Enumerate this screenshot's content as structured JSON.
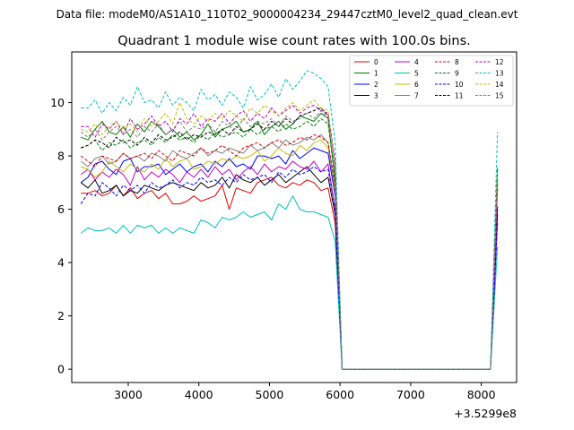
{
  "suptitle": "Data file: modeM0/AS1A10_110T02_9000004234_29447cztM0_level2_quad_clean.evt",
  "chart_data": {
    "type": "line",
    "title": "Quadrant 1 module wise count rates with 100.0s bins.",
    "xlabel": "",
    "ylabel": "",
    "x_offset_label": "+3.5299e8",
    "xlim": [
      2200,
      8500
    ],
    "ylim": [
      -0.5,
      11.9
    ],
    "xticks": [
      3000,
      4000,
      5000,
      6000,
      7000,
      8000
    ],
    "yticks": [
      0,
      2,
      4,
      6,
      8,
      10
    ],
    "grid": false,
    "legend_position": "top-right",
    "x": [
      2330,
      2430,
      2530,
      2630,
      2730,
      2830,
      2930,
      3030,
      3130,
      3230,
      3330,
      3430,
      3530,
      3630,
      3730,
      3830,
      3930,
      4030,
      4130,
      4230,
      4330,
      4430,
      4530,
      4630,
      4730,
      4830,
      4930,
      5030,
      5130,
      5230,
      5330,
      5430,
      5530,
      5630,
      5730,
      5830,
      5930,
      6030,
      8030,
      8130,
      8230
    ],
    "series": [
      {
        "name": "0",
        "color": "#e00000",
        "dash": "solid",
        "values": [
          6.6,
          6.6,
          6.7,
          6.5,
          6.6,
          6.9,
          6.5,
          6.8,
          6.4,
          6.6,
          6.7,
          6.4,
          6.6,
          6.2,
          6.2,
          6.3,
          6.5,
          6.3,
          6.4,
          6.5,
          6.9,
          6.0,
          6.8,
          6.7,
          6.6,
          7.0,
          7.1,
          7.2,
          6.9,
          6.8,
          7.0,
          6.9,
          7.1,
          7.0,
          6.7,
          6.8,
          5.5,
          0,
          0,
          0,
          6.8
        ]
      },
      {
        "name": "1",
        "color": "#008000",
        "dash": "solid",
        "values": [
          8.7,
          8.6,
          9.0,
          9.3,
          8.9,
          8.8,
          9.1,
          8.7,
          9.2,
          8.9,
          9.3,
          9.1,
          8.8,
          9.0,
          8.7,
          8.9,
          8.6,
          8.8,
          9.2,
          8.7,
          9.0,
          9.1,
          9.3,
          8.9,
          9.0,
          9.3,
          8.8,
          9.1,
          9.3,
          9.0,
          9.2,
          9.5,
          9.4,
          9.3,
          9.6,
          9.4,
          7.0,
          0,
          0,
          0,
          7.5
        ]
      },
      {
        "name": "2",
        "color": "#0000ff",
        "dash": "solid",
        "values": [
          7.0,
          7.2,
          7.7,
          7.8,
          7.5,
          7.3,
          7.8,
          7.9,
          7.4,
          7.6,
          7.6,
          7.7,
          7.3,
          7.5,
          7.7,
          7.4,
          7.6,
          7.7,
          7.4,
          7.8,
          7.6,
          7.9,
          7.6,
          7.7,
          7.5,
          8.0,
          8.0,
          7.9,
          8.0,
          7.7,
          8.2,
          7.9,
          8.1,
          8.3,
          8.2,
          8.1,
          6.5,
          0,
          0,
          0,
          5.8
        ]
      },
      {
        "name": "3",
        "color": "#000000",
        "dash": "solid",
        "values": [
          7.0,
          6.8,
          7.1,
          6.6,
          6.7,
          6.9,
          6.5,
          6.7,
          6.6,
          6.9,
          6.8,
          6.7,
          6.9,
          7.0,
          6.9,
          6.8,
          6.7,
          7.0,
          6.8,
          6.9,
          7.2,
          6.8,
          7.3,
          7.1,
          7.0,
          7.2,
          6.9,
          7.1,
          7.3,
          7.0,
          7.2,
          7.4,
          7.6,
          7.3,
          7.0,
          7.2,
          5.8,
          0,
          0,
          0,
          6.1
        ]
      },
      {
        "name": "4",
        "color": "#c000c0",
        "dash": "solid",
        "values": [
          7.3,
          7.5,
          7.1,
          7.4,
          7.2,
          7.5,
          7.3,
          6.9,
          7.6,
          7.1,
          7.4,
          7.2,
          7.5,
          7.3,
          7.0,
          7.4,
          7.2,
          7.5,
          7.2,
          7.6,
          7.3,
          7.5,
          7.1,
          7.4,
          7.6,
          7.3,
          7.7,
          7.4,
          7.6,
          7.5,
          7.8,
          7.6,
          7.5,
          7.8,
          7.4,
          7.7,
          6.0,
          0,
          0,
          0,
          5.6
        ]
      },
      {
        "name": "5",
        "color": "#00bfbf",
        "dash": "solid",
        "values": [
          5.1,
          5.3,
          5.2,
          5.2,
          5.3,
          5.1,
          5.4,
          5.1,
          5.4,
          5.3,
          5.4,
          5.1,
          5.3,
          5.1,
          5.3,
          5.2,
          5.1,
          5.6,
          5.5,
          5.3,
          5.7,
          5.6,
          5.7,
          5.9,
          5.7,
          5.8,
          5.9,
          5.6,
          6.2,
          6.0,
          6.5,
          6.0,
          5.9,
          5.9,
          5.8,
          5.7,
          4.8,
          0,
          0,
          0,
          4.6
        ]
      },
      {
        "name": "6",
        "color": "#bfbf00",
        "dash": "solid",
        "values": [
          7.6,
          7.5,
          7.2,
          7.4,
          7.8,
          7.6,
          7.4,
          7.7,
          7.5,
          7.4,
          7.7,
          7.5,
          7.9,
          7.6,
          7.8,
          7.9,
          7.5,
          7.6,
          7.8,
          7.7,
          7.9,
          7.8,
          8.0,
          7.9,
          8.0,
          8.2,
          7.8,
          8.0,
          8.3,
          8.1,
          8.0,
          8.4,
          8.2,
          8.5,
          8.6,
          8.3,
          6.8,
          0,
          0,
          0,
          7.2
        ]
      },
      {
        "name": "7",
        "color": "#808080",
        "dash": "solid",
        "values": [
          7.8,
          7.6,
          7.9,
          8.0,
          7.7,
          7.8,
          8.1,
          7.9,
          8.0,
          7.8,
          8.1,
          8.0,
          7.8,
          8.2,
          8.0,
          7.9,
          8.1,
          8.3,
          8.0,
          8.2,
          8.1,
          8.3,
          8.2,
          8.1,
          8.4,
          8.2,
          8.3,
          8.5,
          8.3,
          8.6,
          8.4,
          8.5,
          8.7,
          8.6,
          8.8,
          8.5,
          6.6,
          0,
          0,
          0,
          6.9
        ]
      },
      {
        "name": "8",
        "color": "#e00000",
        "dash": "dashed",
        "values": [
          8.0,
          7.8,
          7.6,
          8.0,
          7.9,
          7.8,
          8.1,
          7.9,
          8.0,
          8.1,
          7.9,
          8.2,
          8.0,
          7.8,
          8.2,
          8.1,
          8.0,
          8.3,
          8.1,
          8.2,
          8.4,
          8.2,
          8.0,
          8.3,
          8.4,
          8.5,
          8.3,
          8.5,
          8.6,
          8.4,
          8.5,
          8.7,
          8.6,
          8.8,
          8.7,
          8.5,
          6.9,
          0,
          0,
          0,
          7.0
        ]
      },
      {
        "name": "9",
        "color": "#008000",
        "dash": "dashed",
        "values": [
          8.3,
          8.4,
          8.6,
          8.2,
          8.5,
          8.4,
          8.6,
          8.3,
          8.5,
          8.6,
          8.4,
          8.7,
          8.5,
          8.8,
          8.6,
          8.7,
          8.5,
          8.8,
          8.6,
          8.9,
          8.7,
          8.8,
          8.9,
          8.7,
          9.0,
          8.8,
          9.0,
          9.1,
          8.9,
          9.2,
          9.0,
          9.1,
          9.3,
          9.1,
          9.4,
          9.2,
          7.2,
          0,
          0,
          0,
          7.6
        ]
      },
      {
        "name": "10",
        "color": "#0000ff",
        "dash": "dashed",
        "values": [
          6.2,
          6.6,
          6.5,
          7.0,
          6.8,
          6.5,
          6.9,
          6.7,
          6.9,
          6.6,
          7.0,
          6.8,
          6.9,
          7.1,
          6.8,
          7.0,
          6.9,
          7.2,
          7.0,
          7.1,
          6.9,
          7.2,
          7.0,
          7.3,
          7.1,
          7.2,
          7.3,
          7.0,
          7.4,
          7.2,
          7.5,
          7.3,
          7.4,
          7.6,
          7.4,
          7.5,
          6.0,
          0,
          0,
          0,
          5.5
        ]
      },
      {
        "name": "11",
        "color": "#000000",
        "dash": "dashed",
        "values": [
          8.3,
          8.4,
          8.6,
          8.5,
          8.3,
          8.7,
          8.5,
          8.6,
          8.4,
          8.7,
          8.5,
          8.8,
          8.6,
          8.7,
          8.9,
          8.6,
          8.8,
          8.7,
          8.9,
          8.8,
          9.0,
          8.8,
          9.1,
          8.9,
          9.0,
          9.2,
          9.0,
          9.3,
          9.1,
          9.4,
          9.2,
          9.5,
          9.6,
          9.7,
          9.8,
          9.5,
          7.6,
          0,
          0,
          0,
          7.3
        ]
      },
      {
        "name": "12",
        "color": "#c000c0",
        "dash": "dashed",
        "values": [
          9.1,
          9.1,
          8.7,
          9.2,
          9.0,
          9.3,
          8.8,
          9.4,
          9.0,
          9.2,
          9.5,
          9.1,
          9.3,
          8.9,
          9.4,
          9.2,
          9.6,
          9.1,
          9.4,
          9.3,
          9.6,
          9.2,
          9.5,
          9.7,
          9.3,
          9.6,
          9.4,
          9.8,
          9.5,
          9.7,
          9.9,
          9.6,
          9.8,
          9.9,
          9.7,
          9.6,
          7.8,
          0,
          0,
          0,
          7.0
        ]
      },
      {
        "name": "13",
        "color": "#00bfbf",
        "dash": "dashed",
        "values": [
          9.8,
          9.8,
          10.1,
          9.6,
          10.0,
          9.7,
          10.2,
          9.9,
          10.6,
          10.0,
          10.1,
          9.8,
          10.4,
          9.9,
          10.2,
          10.0,
          9.7,
          10.5,
          10.1,
          10.3,
          9.9,
          10.4,
          10.2,
          9.8,
          10.6,
          10.1,
          10.3,
          10.7,
          10.2,
          10.9,
          10.5,
          10.8,
          11.2,
          11.1,
          10.9,
          10.6,
          8.5,
          0,
          0,
          0,
          8.9
        ]
      },
      {
        "name": "14",
        "color": "#bfbf00",
        "dash": "dashed",
        "values": [
          9.0,
          8.9,
          9.2,
          8.8,
          9.1,
          9.3,
          9.0,
          9.2,
          8.9,
          9.4,
          9.1,
          9.3,
          9.6,
          9.2,
          10.0,
          9.4,
          9.2,
          9.5,
          9.3,
          9.6,
          9.4,
          9.7,
          9.5,
          9.3,
          9.8,
          9.6,
          9.9,
          9.7,
          9.5,
          9.8,
          10.0,
          9.7,
          9.9,
          10.1,
          9.8,
          9.7,
          7.5,
          0,
          0,
          0,
          7.4
        ]
      },
      {
        "name": "15",
        "color": "#808080",
        "dash": "dashed",
        "values": [
          8.9,
          8.7,
          9.0,
          8.6,
          8.9,
          9.1,
          8.8,
          9.0,
          8.7,
          9.1,
          8.9,
          9.2,
          8.8,
          9.0,
          9.3,
          8.9,
          9.1,
          9.0,
          9.2,
          8.9,
          9.3,
          9.1,
          9.0,
          9.4,
          9.1,
          9.3,
          9.2,
          9.4,
          9.1,
          9.5,
          9.3,
          9.4,
          9.6,
          9.4,
          9.7,
          9.4,
          7.4,
          0,
          0,
          0,
          7.1
        ]
      }
    ]
  }
}
